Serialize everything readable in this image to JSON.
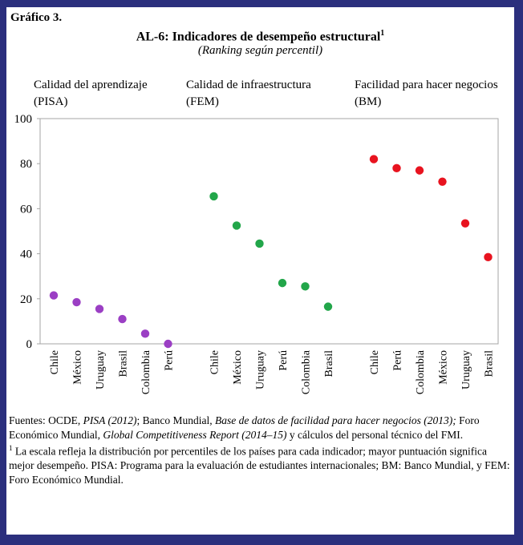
{
  "figure": {
    "label": "Gráfico 3.",
    "title": "AL-6: Indicadores de desempeño estructural",
    "title_sup": "1",
    "subtitle": "(Ranking según percentil)"
  },
  "chart_data": {
    "type": "scatter",
    "ylim": [
      0,
      100
    ],
    "yticks": [
      0,
      20,
      40,
      60,
      80,
      100
    ],
    "grid": false,
    "panels": [
      {
        "title_line1": "Calidad del aprendizaje",
        "title_line2": "(PISA)",
        "color": "#9b3fc4",
        "categories": [
          "Chile",
          "México",
          "Uruguay",
          "Brasil",
          "Colombia",
          "Perú"
        ],
        "values": [
          21.5,
          18.5,
          15.5,
          11,
          4.5,
          0
        ]
      },
      {
        "title_line1": "Calidad de infraestructura",
        "title_line2": "(FEM)",
        "color": "#22a64a",
        "categories": [
          "Chile",
          "México",
          "Uruguay",
          "Perú",
          "Colombia",
          "Brasil"
        ],
        "values": [
          65.5,
          52.5,
          44.5,
          27,
          25.5,
          16.5
        ]
      },
      {
        "title_line1": "Facilidad para hacer negocios",
        "title_line2": "(BM)",
        "color": "#e8131f",
        "categories": [
          "Chile",
          "Perú",
          "Colombia",
          "México",
          "Uruguay",
          "Brasil"
        ],
        "values": [
          82,
          78,
          77,
          72,
          53.5,
          38.5
        ]
      }
    ]
  },
  "notes": {
    "sources_a": "Fuentes: OCDE, ",
    "sources_pisa": "PISA (2012)",
    "sources_b": "; Banco Mundial, ",
    "sources_doing": "Base de datos de facilidad para hacer negocios (2013);",
    "sources_c": " Foro Económico Mundial, ",
    "sources_gcr": "Global Competitiveness Report (2014–15)",
    "sources_d": " y cálculos del personal técnico del FMI.",
    "footnote_mark": "1",
    "footnote": " La escala refleja la distribución por percentiles de los países para cada indicador; mayor puntuación significa mejor desempeño. PISA: Programa para la evaluación de estudiantes internacionales; BM: Banco Mundial, y FEM: Foro Económico Mundial."
  }
}
